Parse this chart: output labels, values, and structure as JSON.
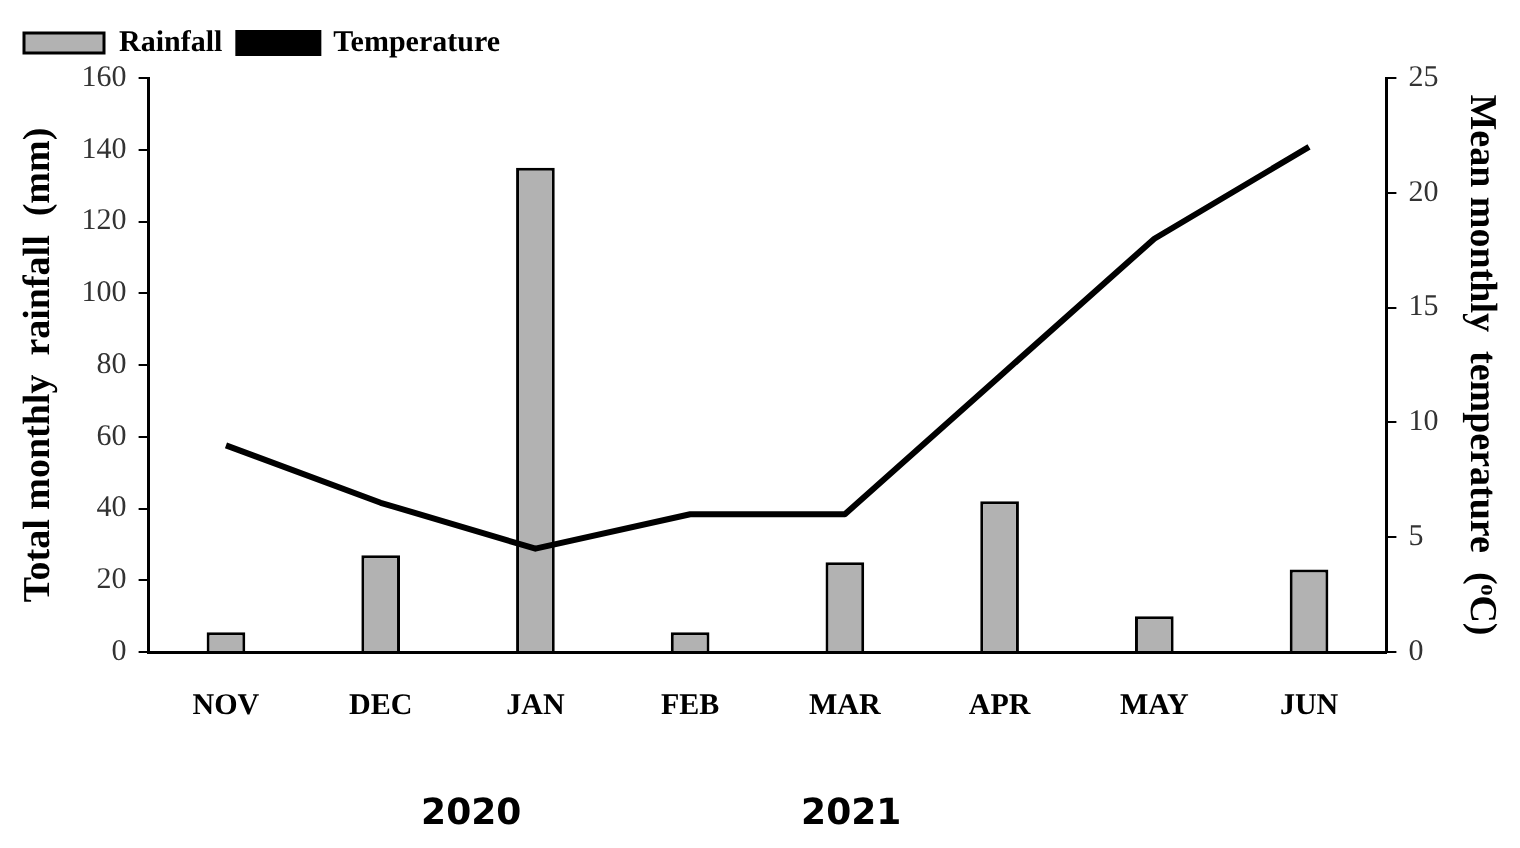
{
  "chart_data": {
    "type": "bar",
    "categories": [
      "NOV",
      "DEC",
      "JAN",
      "FEB",
      "MAR",
      "APR",
      "MAY",
      "JUN"
    ],
    "series": [
      {
        "name": "Rainfall",
        "color": "#b2b2b2",
        "values": [
          5.5,
          27,
          135,
          5.5,
          25,
          42,
          10,
          23
        ]
      },
      {
        "name": "Temperature",
        "type": "line",
        "axis": "y2",
        "color": "#000000",
        "values": [
          9,
          6.5,
          4.5,
          6,
          6,
          12,
          18,
          22
        ]
      }
    ],
    "ylabel": "Total monthly  rainfall  (mm)",
    "y2label": "Mean monthly  temperature  (ᵒC)",
    "ylim": [
      0,
      160
    ],
    "yticks": [
      0,
      20,
      40,
      60,
      80,
      100,
      120,
      140,
      160
    ],
    "y2lim": [
      0,
      25
    ],
    "y2ticks": [
      0,
      5,
      10,
      15,
      20,
      25
    ],
    "legend": "top left",
    "annotations": [
      "2020",
      "2021"
    ]
  }
}
